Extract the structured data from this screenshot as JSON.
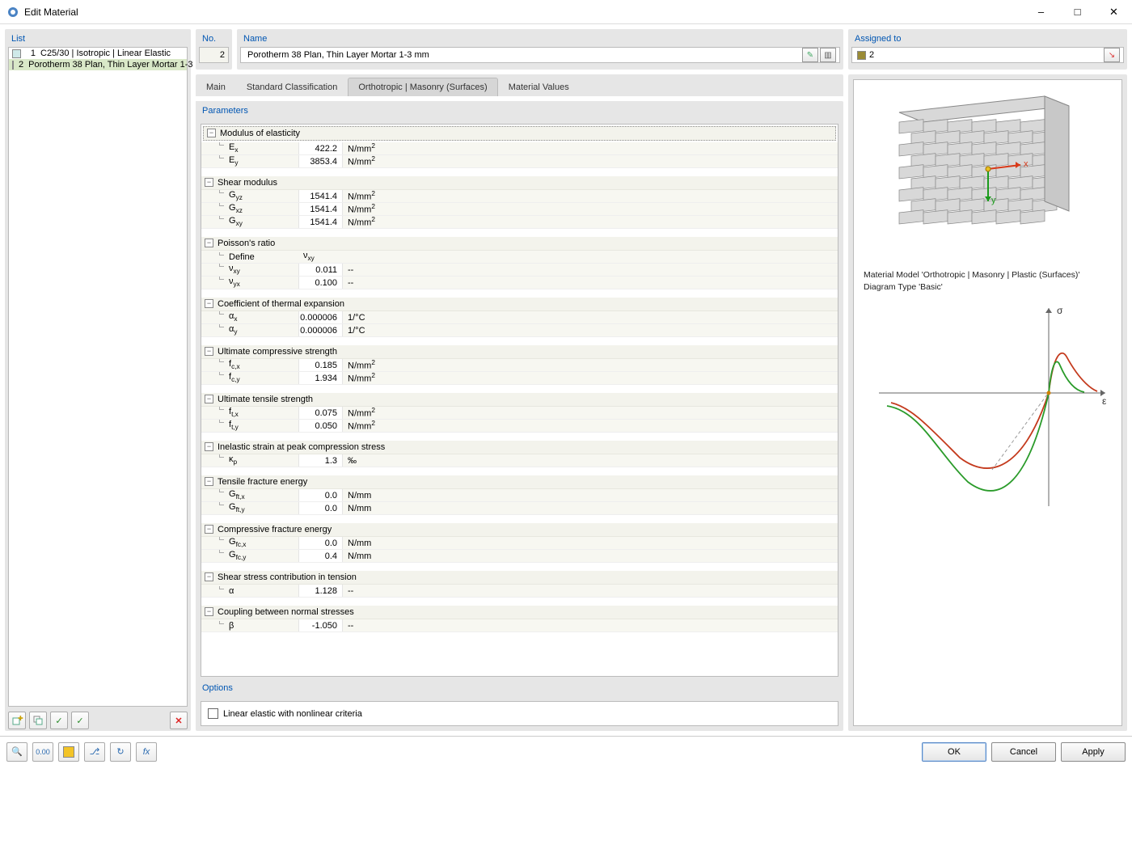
{
  "window": {
    "title": "Edit Material"
  },
  "list": {
    "title": "List",
    "items": [
      {
        "idx": "1",
        "label": "C25/30 | Isotropic | Linear Elastic",
        "color": "#cfe9e9",
        "selected": false
      },
      {
        "idx": "2",
        "label": "Porotherm 38 Plan, Thin Layer Mortar 1-3",
        "color": "#9a8b36",
        "selected": true
      }
    ]
  },
  "no": {
    "title": "No.",
    "value": "2"
  },
  "name": {
    "title": "Name",
    "value": "Porotherm 38 Plan, Thin Layer Mortar 1-3 mm"
  },
  "assigned": {
    "title": "Assigned to",
    "value": "2",
    "swatch": "#9a8b36"
  },
  "tabs": {
    "items": [
      "Main",
      "Standard Classification",
      "Orthotropic | Masonry (Surfaces)",
      "Material Values"
    ],
    "active": 2
  },
  "params": {
    "title": "Parameters",
    "groups": [
      {
        "name": "Modulus of elasticity",
        "rows": [
          {
            "sym": "E<sub>x</sub>",
            "val": "422.2",
            "unit": "N/mm<sup>2</sup>"
          },
          {
            "sym": "E<sub>y</sub>",
            "val": "3853.4",
            "unit": "N/mm<sup>2</sup>"
          }
        ]
      },
      {
        "name": "Shear modulus",
        "rows": [
          {
            "sym": "G<sub>yz</sub>",
            "val": "1541.4",
            "unit": "N/mm<sup>2</sup>"
          },
          {
            "sym": "G<sub>xz</sub>",
            "val": "1541.4",
            "unit": "N/mm<sup>2</sup>"
          },
          {
            "sym": "G<sub>xy</sub>",
            "val": "1541.4",
            "unit": "N/mm<sup>2</sup>"
          }
        ]
      },
      {
        "name": "Poisson's ratio",
        "define": "ν<sub>xy</sub>",
        "rows": [
          {
            "sym": "ν<sub>xy</sub>",
            "val": "0.011",
            "unit": "--"
          },
          {
            "sym": "ν<sub>yx</sub>",
            "val": "0.100",
            "unit": "--"
          }
        ]
      },
      {
        "name": "Coefficient of thermal expansion",
        "rows": [
          {
            "sym": "α<sub>x</sub>",
            "val": "0.000006",
            "unit": "1/°C"
          },
          {
            "sym": "α<sub>y</sub>",
            "val": "0.000006",
            "unit": "1/°C"
          }
        ]
      },
      {
        "name": "Ultimate compressive strength",
        "rows": [
          {
            "sym": "f<sub>c,x</sub>",
            "val": "0.185",
            "unit": "N/mm<sup>2</sup>"
          },
          {
            "sym": "f<sub>c,y</sub>",
            "val": "1.934",
            "unit": "N/mm<sup>2</sup>"
          }
        ]
      },
      {
        "name": "Ultimate tensile strength",
        "rows": [
          {
            "sym": "f<sub>t,x</sub>",
            "val": "0.075",
            "unit": "N/mm<sup>2</sup>"
          },
          {
            "sym": "f<sub>t,y</sub>",
            "val": "0.050",
            "unit": "N/mm<sup>2</sup>"
          }
        ]
      },
      {
        "name": "Inelastic strain at peak compression stress",
        "rows": [
          {
            "sym": "κ<sub>p</sub>",
            "val": "1.3",
            "unit": "‰"
          }
        ]
      },
      {
        "name": "Tensile fracture energy",
        "rows": [
          {
            "sym": "G<sub>ft,x</sub>",
            "val": "0.0",
            "unit": "N/mm"
          },
          {
            "sym": "G<sub>ft,y</sub>",
            "val": "0.0",
            "unit": "N/mm"
          }
        ]
      },
      {
        "name": "Compressive fracture energy",
        "rows": [
          {
            "sym": "G<sub>fc,x</sub>",
            "val": "0.0",
            "unit": "N/mm"
          },
          {
            "sym": "G<sub>fc,y</sub>",
            "val": "0.4",
            "unit": "N/mm"
          }
        ]
      },
      {
        "name": "Shear stress contribution in tension",
        "rows": [
          {
            "sym": "α",
            "val": "1.128",
            "unit": "--"
          }
        ]
      },
      {
        "name": "Coupling between normal stresses",
        "rows": [
          {
            "sym": "β",
            "val": "-1.050",
            "unit": "--"
          }
        ]
      }
    ]
  },
  "options": {
    "title": "Options",
    "linear": "Linear elastic with nonlinear criteria"
  },
  "preview": {
    "line1": "Material Model 'Orthotropic | Masonry | Plastic (Surfaces)'",
    "line2": "Diagram Type 'Basic'",
    "sigma": "σ",
    "eps": "ε",
    "x": "x",
    "y": "y",
    "colors": {
      "brick_fill": "#d8d8d8",
      "brick_stroke": "#888",
      "axis": "#666",
      "curve1": "#c43a1d",
      "curve2": "#2a9b2a",
      "xarrow": "#d83a1a",
      "yarrow": "#1a9a1a"
    }
  },
  "buttons": {
    "ok": "OK",
    "cancel": "Cancel",
    "apply": "Apply"
  }
}
